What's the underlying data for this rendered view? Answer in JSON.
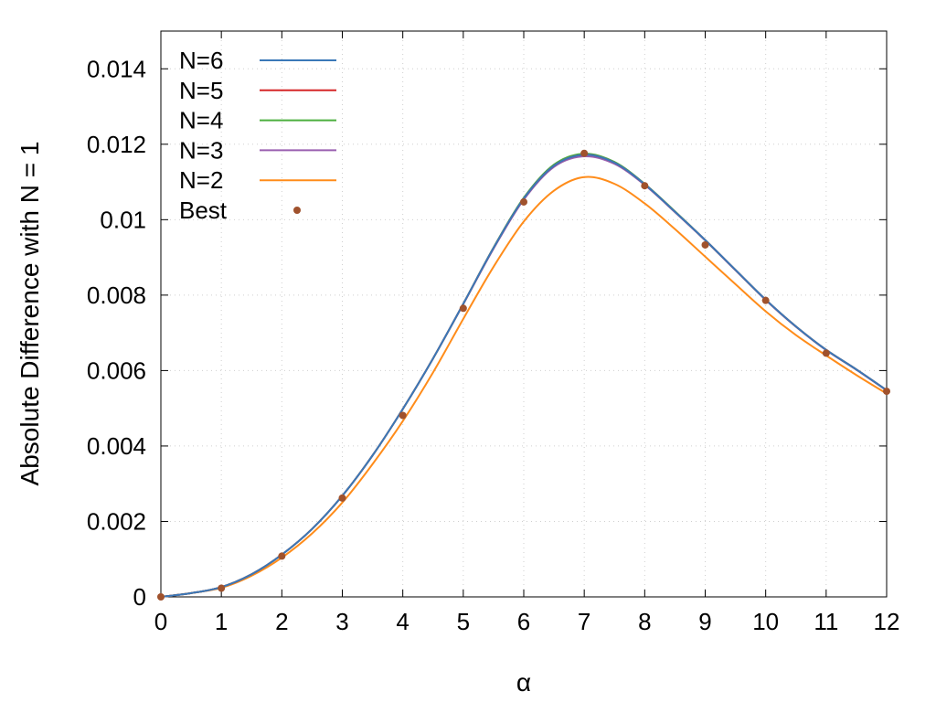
{
  "chart_data": {
    "type": "line",
    "title": "",
    "xlabel": "α",
    "ylabel": "Absolute Difference with N = 1",
    "xlim": [
      0,
      12
    ],
    "ylim": [
      0,
      0.015
    ],
    "x_ticks": [
      0,
      1,
      2,
      3,
      4,
      5,
      6,
      7,
      8,
      9,
      10,
      11,
      12
    ],
    "x_tick_labels": [
      "0",
      "1",
      "2",
      "3",
      "4",
      "5",
      "6",
      "7",
      "8",
      "9",
      "10",
      "11",
      "12"
    ],
    "y_ticks": [
      0,
      0.002,
      0.004,
      0.006,
      0.008,
      0.01,
      0.012,
      0.014
    ],
    "y_tick_labels": [
      "0",
      "0.002",
      "0.004",
      "0.006",
      "0.008",
      "0.01",
      "0.012",
      "0.014"
    ],
    "grid": true,
    "legend_position": "top-left",
    "series": [
      {
        "name": "N=6",
        "style": "line",
        "color": "#3a78b8",
        "x": [
          0,
          0.5,
          1,
          1.5,
          2,
          2.5,
          3,
          3.5,
          4,
          4.5,
          5,
          5.5,
          6,
          6.5,
          7,
          7.5,
          8,
          8.5,
          9,
          9.5,
          10,
          10.5,
          11,
          11.5,
          12
        ],
        "y": [
          0,
          0.0001,
          0.00026,
          0.0006,
          0.00112,
          0.0018,
          0.00268,
          0.00375,
          0.00498,
          0.00632,
          0.00777,
          0.00925,
          0.01056,
          0.01143,
          0.01172,
          0.01151,
          0.01094,
          0.01021,
          0.00946,
          0.00867,
          0.00788,
          0.00717,
          0.00655,
          0.00603,
          0.00548
        ]
      },
      {
        "name": "N=5",
        "style": "line",
        "color": "#d62728",
        "x": [
          0,
          0.5,
          1,
          1.5,
          2,
          2.5,
          3,
          3.5,
          4,
          4.5,
          5,
          5.5,
          6,
          6.5,
          7,
          7.5,
          8,
          8.5,
          9,
          9.5,
          10,
          10.5,
          11,
          11.5,
          12
        ],
        "y": [
          0,
          0.0001,
          0.00026,
          0.0006,
          0.00112,
          0.0018,
          0.00268,
          0.00375,
          0.00498,
          0.00632,
          0.00777,
          0.00925,
          0.01056,
          0.01143,
          0.01172,
          0.01151,
          0.01094,
          0.01021,
          0.00946,
          0.00867,
          0.00788,
          0.00717,
          0.00655,
          0.00603,
          0.00548
        ]
      },
      {
        "name": "N=4",
        "style": "line",
        "color": "#4caf3f",
        "x": [
          0,
          0.5,
          1,
          1.5,
          2,
          2.5,
          3,
          3.5,
          4,
          4.5,
          5,
          5.5,
          6,
          6.5,
          7,
          7.5,
          8,
          8.5,
          9,
          9.5,
          10,
          10.5,
          11,
          11.5,
          12
        ],
        "y": [
          0,
          0.0001,
          0.00026,
          0.0006,
          0.00112,
          0.0018,
          0.00268,
          0.00375,
          0.00498,
          0.00632,
          0.00777,
          0.00926,
          0.01058,
          0.01146,
          0.01175,
          0.01153,
          0.01095,
          0.01022,
          0.00946,
          0.00867,
          0.00788,
          0.00717,
          0.00655,
          0.00603,
          0.00548
        ]
      },
      {
        "name": "N=3",
        "style": "line",
        "color": "#9a5fb0",
        "x": [
          0,
          0.5,
          1,
          1.5,
          2,
          2.5,
          3,
          3.5,
          4,
          4.5,
          5,
          5.5,
          6,
          6.5,
          7,
          7.5,
          8,
          8.5,
          9,
          9.5,
          10,
          10.5,
          11,
          11.5,
          12
        ],
        "y": [
          0,
          0.0001,
          0.00026,
          0.0006,
          0.00112,
          0.0018,
          0.00268,
          0.00375,
          0.00498,
          0.00632,
          0.00776,
          0.00923,
          0.01053,
          0.0114,
          0.01168,
          0.01148,
          0.01092,
          0.0102,
          0.00945,
          0.00866,
          0.00787,
          0.00716,
          0.00654,
          0.00602,
          0.00547
        ]
      },
      {
        "name": "N=2",
        "style": "line",
        "color": "#ff8c1a",
        "x": [
          0,
          0.5,
          1,
          1.5,
          2,
          2.5,
          3,
          3.5,
          4,
          4.5,
          5,
          5.5,
          6,
          6.5,
          7,
          7.5,
          8,
          8.5,
          9,
          9.5,
          10,
          10.5,
          11,
          11.5,
          12
        ],
        "y": [
          0,
          0.0001,
          0.00024,
          0.00056,
          0.00104,
          0.00168,
          0.0025,
          0.00352,
          0.00466,
          0.00595,
          0.00737,
          0.00875,
          0.00995,
          0.01077,
          0.01113,
          0.01095,
          0.01043,
          0.00975,
          0.00902,
          0.00829,
          0.00757,
          0.00694,
          0.0064,
          0.00588,
          0.00539
        ]
      },
      {
        "name": "Best",
        "style": "points",
        "color": "#a0522d",
        "x": [
          0,
          1,
          2,
          3,
          4,
          5,
          6,
          7,
          8,
          9,
          10,
          11,
          12
        ],
        "y": [
          0,
          0.00023,
          0.00108,
          0.00262,
          0.00481,
          0.00765,
          0.01047,
          0.01176,
          0.0109,
          0.00933,
          0.00786,
          0.00646,
          0.00545
        ]
      }
    ]
  }
}
